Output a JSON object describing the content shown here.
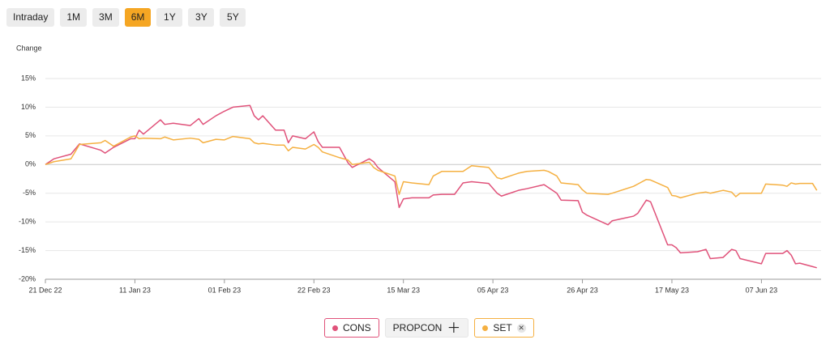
{
  "range_buttons": [
    "Intraday",
    "1M",
    "3M",
    "6M",
    "1Y",
    "3Y",
    "5Y"
  ],
  "selected_range": "6M",
  "inactive_series": [
    "PROPCON"
  ],
  "chart_data": {
    "type": "line",
    "ylabel": "Change",
    "ylim": [
      -20,
      15
    ],
    "yticks": [
      {
        "value": -20,
        "label": "-20%"
      },
      {
        "value": -15,
        "label": "-15%"
      },
      {
        "value": -10,
        "label": "-10%"
      },
      {
        "value": -5,
        "label": "-5%"
      },
      {
        "value": 0,
        "label": "0%"
      },
      {
        "value": 5,
        "label": "5%"
      },
      {
        "value": 10,
        "label": "10%"
      },
      {
        "value": 15,
        "label": "15%"
      }
    ],
    "grid": true,
    "xlim": [
      "2022-12-21",
      "2023-06-21"
    ],
    "xticks": [
      {
        "value": "2022-12-21",
        "label": "21 Dec 22"
      },
      {
        "value": "2023-01-11",
        "label": "11 Jan 23"
      },
      {
        "value": "2023-02-01",
        "label": "01 Feb 23"
      },
      {
        "value": "2023-02-22",
        "label": "22 Feb 23"
      },
      {
        "value": "2023-03-15",
        "label": "15 Mar 23"
      },
      {
        "value": "2023-04-05",
        "label": "05 Apr 23"
      },
      {
        "value": "2023-04-26",
        "label": "26 Apr 23"
      },
      {
        "value": "2023-05-17",
        "label": "17 May 23"
      },
      {
        "value": "2023-06-07",
        "label": "07 Jun 23"
      }
    ],
    "x": [
      "2022-12-21",
      "2022-12-23",
      "2022-12-27",
      "2022-12-29",
      "2023-01-03",
      "2023-01-04",
      "2023-01-06",
      "2023-01-10",
      "2023-01-11",
      "2023-01-12",
      "2023-01-13",
      "2023-01-17",
      "2023-01-18",
      "2023-01-20",
      "2023-01-24",
      "2023-01-26",
      "2023-01-27",
      "2023-01-30",
      "2023-02-01",
      "2023-02-03",
      "2023-02-07",
      "2023-02-08",
      "2023-02-09",
      "2023-02-10",
      "2023-02-13",
      "2023-02-15",
      "2023-02-16",
      "2023-02-17",
      "2023-02-20",
      "2023-02-22",
      "2023-02-23",
      "2023-02-24",
      "2023-02-28",
      "2023-03-02",
      "2023-03-03",
      "2023-03-07",
      "2023-03-08",
      "2023-03-09",
      "2023-03-13",
      "2023-03-14",
      "2023-03-15",
      "2023-03-17",
      "2023-03-21",
      "2023-03-22",
      "2023-03-24",
      "2023-03-27",
      "2023-03-29",
      "2023-03-31",
      "2023-04-04",
      "2023-04-06",
      "2023-04-07",
      "2023-04-11",
      "2023-04-13",
      "2023-04-17",
      "2023-04-18",
      "2023-04-20",
      "2023-04-21",
      "2023-04-25",
      "2023-04-26",
      "2023-04-27",
      "2023-05-02",
      "2023-05-03",
      "2023-05-08",
      "2023-05-09",
      "2023-05-11",
      "2023-05-12",
      "2023-05-16",
      "2023-05-17",
      "2023-05-18",
      "2023-05-19",
      "2023-05-23",
      "2023-05-25",
      "2023-05-26",
      "2023-05-29",
      "2023-05-31",
      "2023-06-01",
      "2023-06-02",
      "2023-06-07",
      "2023-06-08",
      "2023-06-12",
      "2023-06-13",
      "2023-06-14",
      "2023-06-15",
      "2023-06-16",
      "2023-06-19",
      "2023-06-20"
    ],
    "series": [
      {
        "name": "CONS",
        "color": "#e0527a",
        "values": [
          0,
          1.0,
          1.8,
          3.6,
          2.5,
          2.0,
          3.0,
          4.5,
          4.5,
          6.0,
          5.3,
          7.8,
          7.0,
          7.2,
          6.8,
          8.0,
          7.0,
          8.5,
          9.3,
          10.0,
          10.3,
          8.5,
          7.8,
          8.5,
          6.0,
          6.0,
          3.8,
          5.0,
          4.5,
          5.7,
          4.0,
          3.0,
          3.0,
          0.3,
          -0.5,
          1.0,
          0.5,
          -0.5,
          -3.0,
          -7.5,
          -6.0,
          -5.8,
          -5.8,
          -5.3,
          -5.2,
          -5.2,
          -3.2,
          -3.0,
          -3.3,
          -5.0,
          -5.5,
          -4.5,
          -4.2,
          -3.5,
          -4.0,
          -5.0,
          -6.2,
          -6.3,
          -8.3,
          -8.8,
          -10.5,
          -9.8,
          -9.0,
          -8.5,
          -6.2,
          -6.5,
          -14.0,
          -14.0,
          -14.5,
          -15.4,
          -15.2,
          -14.8,
          -16.4,
          -16.2,
          -14.8,
          -15.0,
          -16.4,
          -17.3,
          -15.5,
          -15.5,
          -15.0,
          -15.8,
          -17.3,
          -17.2,
          -17.8,
          -18.0
        ]
      },
      {
        "name": "SET",
        "color": "#f5b041",
        "values": [
          0,
          0.5,
          1.0,
          3.5,
          3.8,
          4.2,
          3.2,
          4.8,
          5.0,
          4.5,
          4.6,
          4.5,
          4.8,
          4.3,
          4.6,
          4.4,
          3.8,
          4.4,
          4.3,
          4.9,
          4.5,
          3.8,
          3.6,
          3.7,
          3.4,
          3.4,
          2.4,
          3.0,
          2.7,
          3.5,
          3.0,
          2.2,
          1.2,
          0.8,
          0,
          0.4,
          -0.5,
          -1.0,
          -2.0,
          -5.2,
          -3.0,
          -3.2,
          -3.5,
          -2.0,
          -1.2,
          -1.2,
          -1.2,
          -0.2,
          -0.5,
          -2.3,
          -2.5,
          -1.5,
          -1.2,
          -1.0,
          -1.2,
          -2.0,
          -3.2,
          -3.5,
          -4.4,
          -5.0,
          -5.2,
          -5.0,
          -3.8,
          -3.4,
          -2.6,
          -2.7,
          -4.0,
          -5.4,
          -5.5,
          -5.8,
          -5.0,
          -4.8,
          -5.0,
          -4.5,
          -4.8,
          -5.6,
          -5.0,
          -5.0,
          -3.4,
          -3.6,
          -3.8,
          -3.2,
          -3.4,
          -3.3,
          -3.3,
          -4.5
        ]
      }
    ]
  }
}
